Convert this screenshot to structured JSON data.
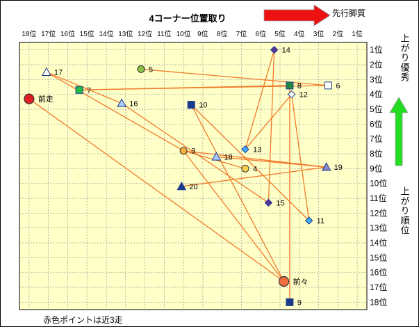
{
  "chart_data": {
    "type": "scatter",
    "title": "4コーナー位置取り",
    "arrow_label_top": "先行脚質",
    "right_label_top": "上がり優秀",
    "right_label_bottom": "上がり順位",
    "footnote": "赤色ポイントは近3走",
    "x_ticks": [
      "18位",
      "17位",
      "16位",
      "15位",
      "14位",
      "13位",
      "12位",
      "11位",
      "10位",
      "9位",
      "8位",
      "7位",
      "6位",
      "5位",
      "4位",
      "3位",
      "2位",
      "1位"
    ],
    "y_ticks": [
      "1位",
      "2位",
      "3位",
      "4位",
      "5位",
      "6位",
      "7位",
      "8位",
      "9位",
      "10位",
      "11位",
      "12位",
      "13位",
      "14位",
      "15位",
      "16位",
      "17位",
      "18位"
    ],
    "xlim": [
      18.5,
      0.5
    ],
    "ylim": [
      0.5,
      18.5
    ],
    "colors": {
      "line": "#f07a2a",
      "plot_bg": "#ffffc8",
      "arrow_red": "#ee1111",
      "arrow_green": "#22dd22"
    },
    "points": [
      {
        "label": "前走",
        "x": 18.0,
        "y": 4.3,
        "shape": "circle-big",
        "fill": "#e02020"
      },
      {
        "label": "前々",
        "x": 4.8,
        "y": 16.6,
        "shape": "circle-big",
        "fill": "#f07040"
      },
      {
        "label": "3",
        "x": 10.0,
        "y": 7.8,
        "shape": "circle",
        "fill": "#f8b040"
      },
      {
        "label": "4",
        "x": 6.8,
        "y": 9.0,
        "shape": "circle",
        "fill": "#f8d050"
      },
      {
        "label": "5",
        "x": 12.2,
        "y": 2.3,
        "shape": "circle",
        "fill": "#88c040"
      },
      {
        "label": "6",
        "x": 2.5,
        "y": 3.4,
        "shape": "square",
        "fill": "#ffffff"
      },
      {
        "label": "7",
        "x": 15.4,
        "y": 3.7,
        "shape": "square",
        "fill": "#22bb44"
      },
      {
        "label": "8",
        "x": 4.5,
        "y": 3.4,
        "shape": "square",
        "fill": "#228844"
      },
      {
        "label": "9",
        "x": 4.5,
        "y": 18.0,
        "shape": "square",
        "fill": "#1a3a8a"
      },
      {
        "label": "10",
        "x": 9.6,
        "y": 4.7,
        "shape": "square",
        "fill": "#1a3a8a"
      },
      {
        "label": "11",
        "x": 3.5,
        "y": 12.5,
        "shape": "diamond",
        "fill": "#44aaff"
      },
      {
        "label": "12",
        "x": 4.4,
        "y": 4.0,
        "shape": "diamond",
        "fill": "#ffffff"
      },
      {
        "label": "13",
        "x": 6.8,
        "y": 7.7,
        "shape": "diamond",
        "fill": "#44aaff"
      },
      {
        "label": "14",
        "x": 5.3,
        "y": 1.0,
        "shape": "diamond",
        "fill": "#553399"
      },
      {
        "label": "15",
        "x": 5.6,
        "y": 11.3,
        "shape": "diamond",
        "fill": "#553399"
      },
      {
        "label": "16",
        "x": 13.2,
        "y": 4.6,
        "shape": "triangle",
        "fill": "#aaccff"
      },
      {
        "label": "17",
        "x": 17.1,
        "y": 2.5,
        "shape": "triangle",
        "fill": "#ffffff"
      },
      {
        "label": "18",
        "x": 8.3,
        "y": 8.2,
        "shape": "triangle",
        "fill": "#aaccff"
      },
      {
        "label": "19",
        "x": 2.6,
        "y": 8.9,
        "shape": "triangle",
        "fill": "#8888cc"
      },
      {
        "label": "20",
        "x": 10.1,
        "y": 10.2,
        "shape": "triangle",
        "fill": "#1a3a8a"
      }
    ],
    "lines": [
      [
        18.0,
        4.3,
        4.8,
        16.6
      ],
      [
        10.0,
        7.8,
        4.8,
        16.6
      ],
      [
        10.0,
        7.8,
        6.8,
        9.0
      ],
      [
        12.2,
        2.3,
        2.5,
        3.4
      ],
      [
        15.4,
        3.7,
        2.5,
        3.4
      ],
      [
        15.4,
        3.7,
        4.5,
        3.4
      ],
      [
        4.5,
        3.4,
        4.5,
        18.0
      ],
      [
        9.6,
        4.7,
        4.8,
        16.6
      ],
      [
        9.6,
        4.7,
        3.5,
        12.5
      ],
      [
        4.4,
        4.0,
        6.8,
        7.7
      ],
      [
        4.4,
        4.0,
        3.5,
        12.5
      ],
      [
        5.3,
        1.0,
        6.8,
        7.7
      ],
      [
        5.3,
        1.0,
        5.6,
        11.3
      ],
      [
        17.1,
        2.5,
        13.2,
        4.6
      ],
      [
        17.1,
        2.5,
        10.0,
        7.8
      ],
      [
        13.2,
        4.6,
        5.6,
        11.3
      ],
      [
        10.0,
        7.8,
        2.6,
        8.9
      ],
      [
        8.3,
        8.2,
        2.6,
        8.9
      ],
      [
        10.1,
        10.2,
        2.6,
        8.9
      ]
    ]
  }
}
